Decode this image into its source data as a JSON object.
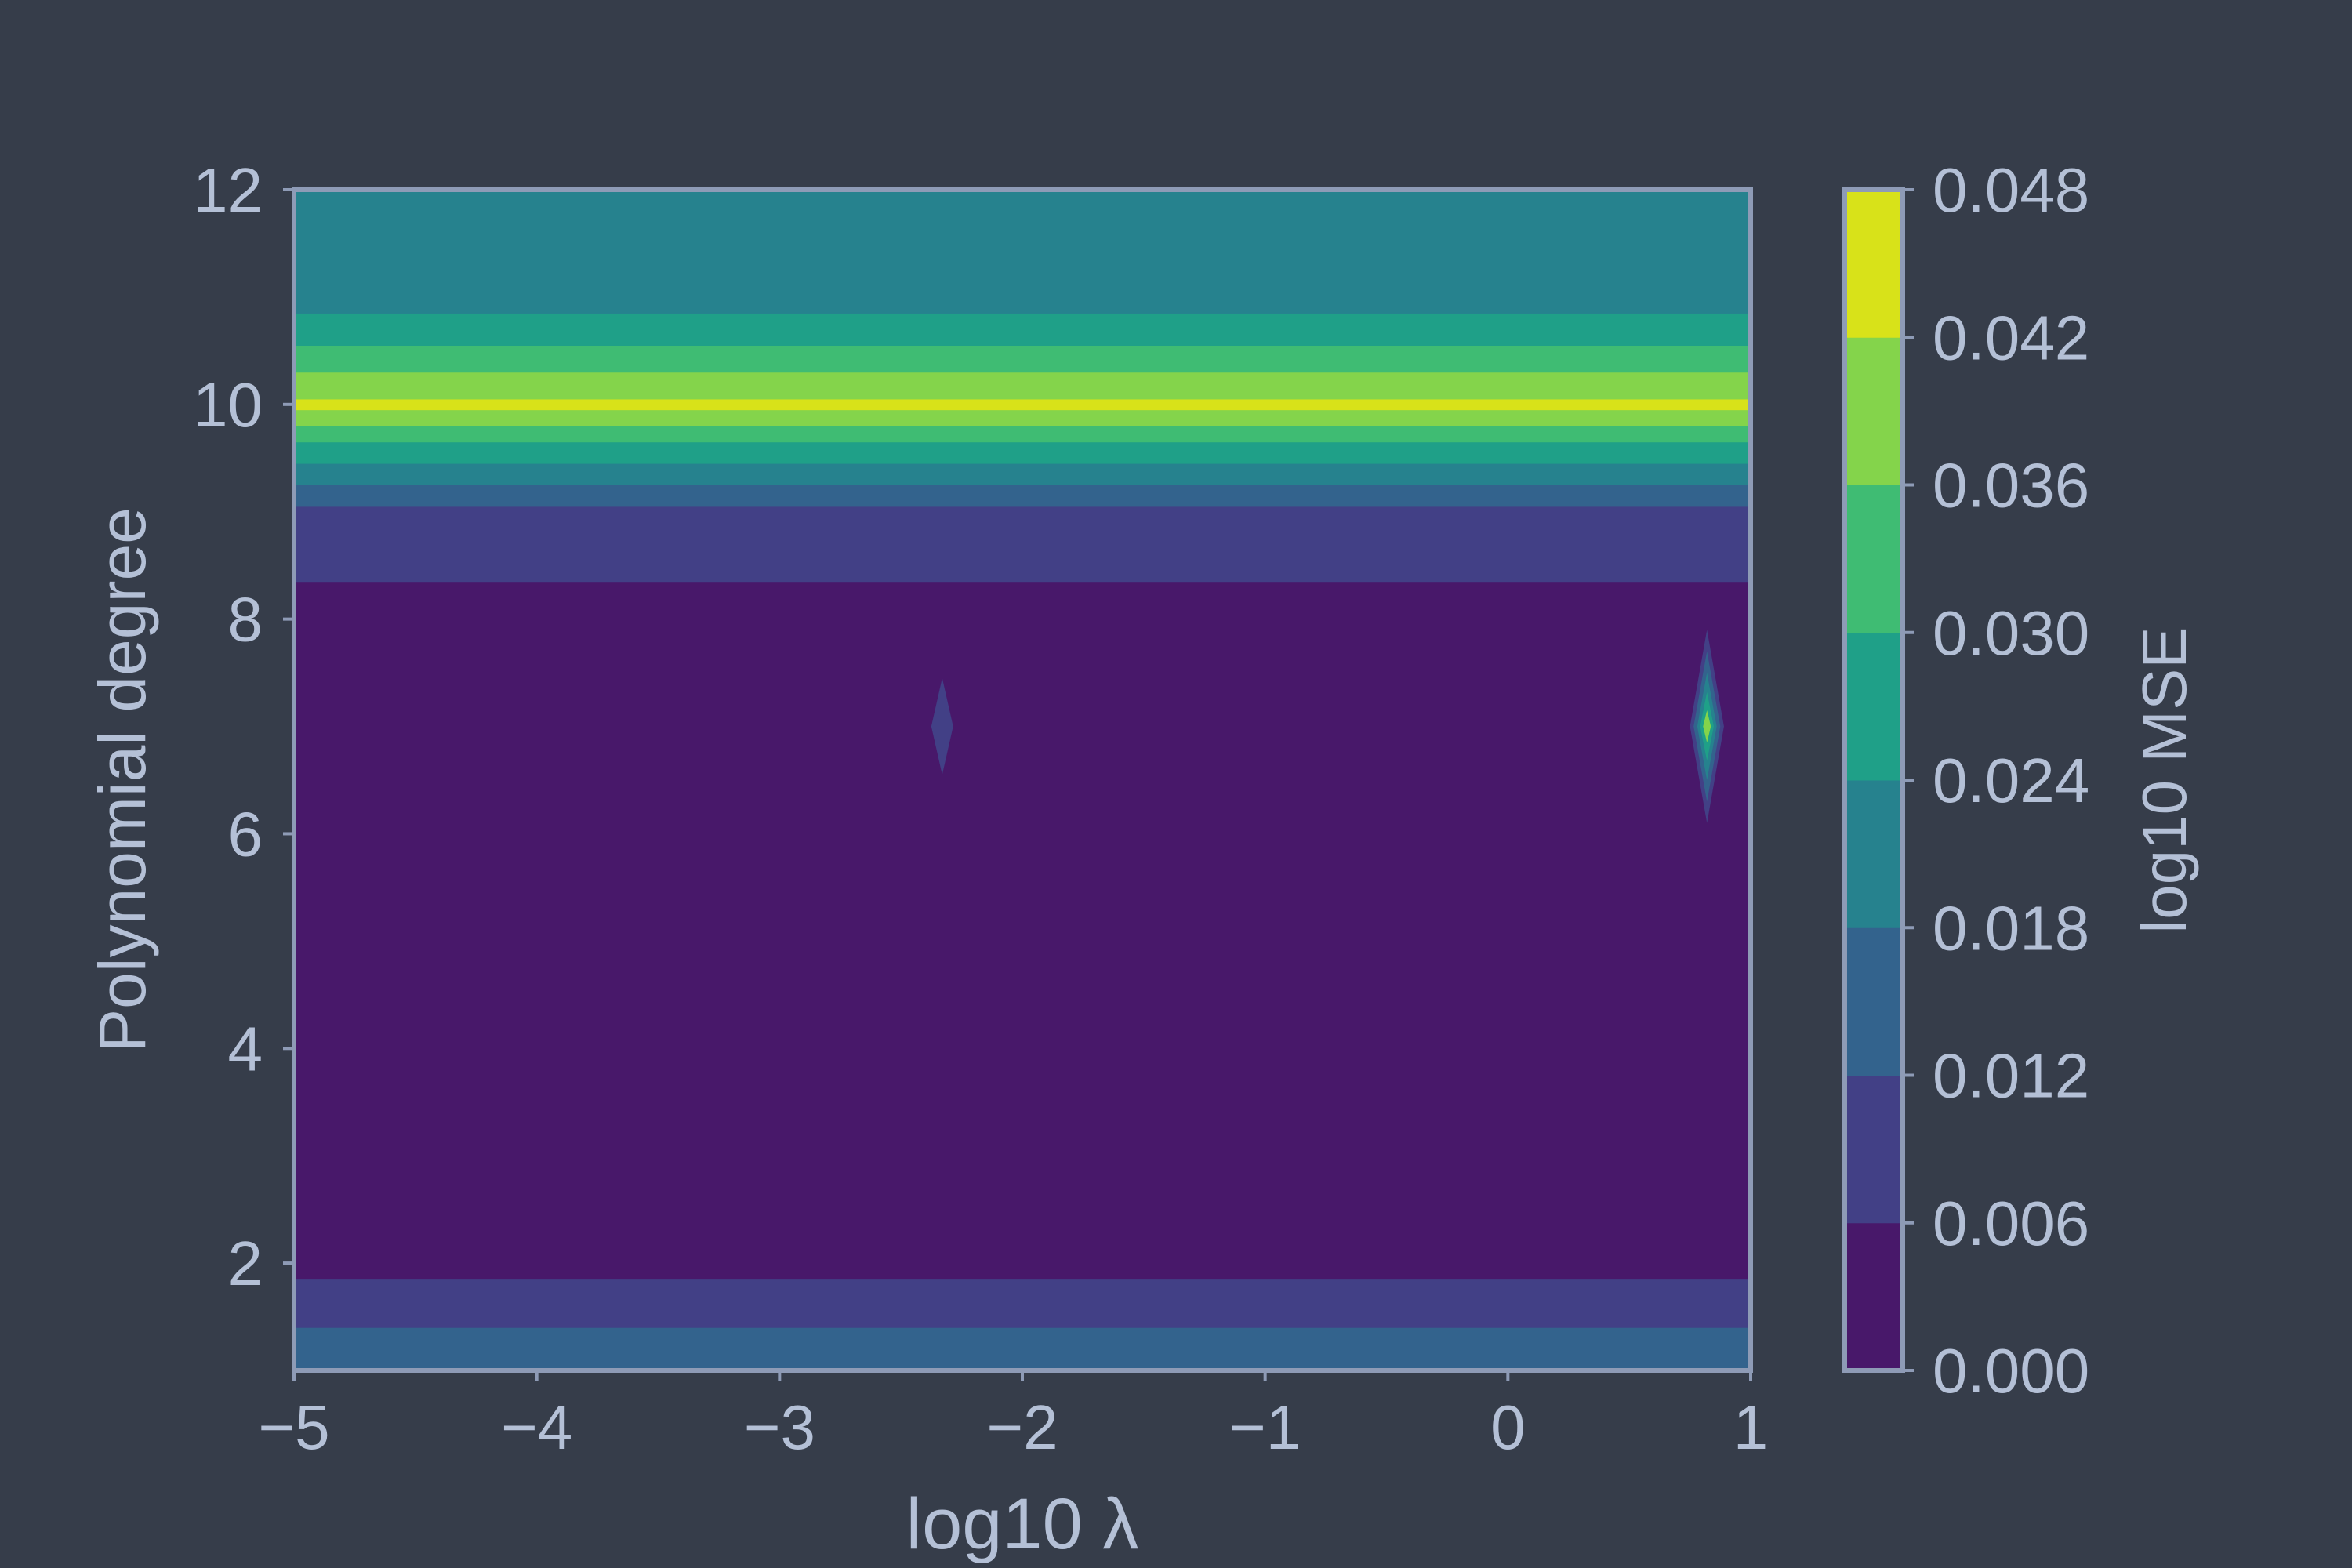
{
  "chart_data": {
    "type": "heatmap",
    "subtype": "filled-contour",
    "title": "",
    "xlabel": "log10 λ",
    "ylabel": "Polynomial degree",
    "colorbar_label": "log10 MSE",
    "xlim": [
      -5,
      1
    ],
    "ylim": [
      1,
      12
    ],
    "xticks": [
      -5,
      -4,
      -3,
      -2,
      -1,
      0,
      1
    ],
    "xtick_labels": [
      "−5",
      "−4",
      "−3",
      "−2",
      "−1",
      "0",
      "1"
    ],
    "yticks": [
      2,
      4,
      6,
      8,
      10,
      12
    ],
    "ytick_labels": [
      "2",
      "4",
      "6",
      "8",
      "10",
      "12"
    ],
    "levels": [
      0.0,
      0.006,
      0.012,
      0.018,
      0.024,
      0.03,
      0.036,
      0.042,
      0.048
    ],
    "level_labels": [
      "0.000",
      "0.006",
      "0.012",
      "0.018",
      "0.024",
      "0.030",
      "0.036",
      "0.042",
      "0.048"
    ],
    "level_colors": [
      "#48186a",
      "#424086",
      "#33638d",
      "#26828e",
      "#1fa088",
      "#3fbc73",
      "#84d44b",
      "#d8e219"
    ],
    "bands": [
      {
        "y0": 1.0,
        "y1": 1.4,
        "level": 2
      },
      {
        "y0": 1.4,
        "y1": 1.85,
        "level": 1
      },
      {
        "y0": 1.85,
        "y1": 8.35,
        "level": 0
      },
      {
        "y0": 8.35,
        "y1": 9.05,
        "level": 1
      },
      {
        "y0": 9.05,
        "y1": 9.25,
        "level": 2
      },
      {
        "y0": 9.25,
        "y1": 9.45,
        "level": 3
      },
      {
        "y0": 9.45,
        "y1": 9.65,
        "level": 4
      },
      {
        "y0": 9.65,
        "y1": 9.8,
        "level": 5
      },
      {
        "y0": 9.8,
        "y1": 9.95,
        "level": 6
      },
      {
        "y0": 9.95,
        "y1": 10.05,
        "level": 7
      },
      {
        "y0": 10.05,
        "y1": 10.3,
        "level": 6
      },
      {
        "y0": 10.3,
        "y1": 10.55,
        "level": 5
      },
      {
        "y0": 10.55,
        "y1": 10.85,
        "level": 4
      },
      {
        "y0": 10.85,
        "y1": 12.0,
        "level": 3
      }
    ],
    "spikes": [
      {
        "x": -2.33,
        "y": 7.0,
        "rings": [
          {
            "dx": 0.045,
            "dy": 0.45,
            "level": 1
          }
        ]
      },
      {
        "x": 0.82,
        "y": 7.0,
        "rings": [
          {
            "dx": 0.07,
            "dy": 0.9,
            "level": 1
          },
          {
            "dx": 0.055,
            "dy": 0.7,
            "level": 2
          },
          {
            "dx": 0.04,
            "dy": 0.5,
            "level": 3
          },
          {
            "dx": 0.028,
            "dy": 0.32,
            "level": 4
          },
          {
            "dx": 0.016,
            "dy": 0.15,
            "level": 6
          }
        ]
      }
    ],
    "grid": false,
    "legend": "none"
  }
}
